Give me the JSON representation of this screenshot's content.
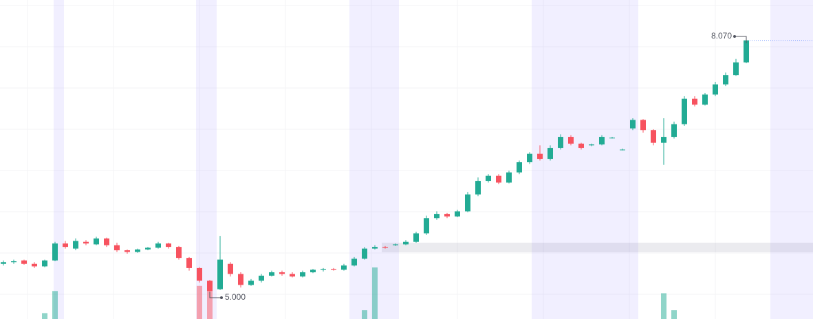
{
  "chart_data": {
    "type": "candlestick",
    "open": [
      5.4,
      5.42,
      5.44,
      5.4,
      5.37,
      5.44,
      5.64,
      5.58,
      5.66,
      5.63,
      5.7,
      5.62,
      5.56,
      5.54,
      5.57,
      5.59,
      5.64,
      5.6,
      5.47,
      5.35,
      5.2,
      5.1,
      5.4,
      5.28,
      5.15,
      5.2,
      5.26,
      5.3,
      5.28,
      5.25,
      5.3,
      5.33,
      5.34,
      5.33,
      5.38,
      5.46,
      5.58,
      5.6,
      5.62,
      5.63,
      5.66,
      5.76,
      5.94,
      5.99,
      5.96,
      6.02,
      6.22,
      6.38,
      6.44,
      6.36,
      6.48,
      6.6,
      6.7,
      6.64,
      6.77,
      6.9,
      6.82,
      6.8,
      6.81,
      6.89,
      6.75,
      7.0,
      7.1,
      6.98,
      6.83,
      6.9,
      7.05,
      7.35,
      7.28,
      7.4,
      7.52,
      7.63,
      7.78
    ],
    "high": [
      5.44,
      5.45,
      5.45,
      5.42,
      5.45,
      5.66,
      5.67,
      5.7,
      5.68,
      5.72,
      5.71,
      5.65,
      5.57,
      5.58,
      5.6,
      5.66,
      5.65,
      5.61,
      5.48,
      5.36,
      5.21,
      5.73,
      5.42,
      5.3,
      5.22,
      5.28,
      5.32,
      5.32,
      5.3,
      5.32,
      5.34,
      5.35,
      5.35,
      5.4,
      5.48,
      5.6,
      5.62,
      5.61,
      5.64,
      5.68,
      5.78,
      5.97,
      6.02,
      6.0,
      6.04,
      6.25,
      6.42,
      6.46,
      6.46,
      6.5,
      6.62,
      6.72,
      6.8,
      6.8,
      6.93,
      6.92,
      6.83,
      6.82,
      6.92,
      6.9,
      6.76,
      7.12,
      7.11,
      6.99,
      7.12,
      7.08,
      7.38,
      7.38,
      7.42,
      7.55,
      7.66,
      7.82,
      8.07
    ],
    "low": [
      5.38,
      5.4,
      5.39,
      5.35,
      5.36,
      5.43,
      5.58,
      5.56,
      5.62,
      5.62,
      5.6,
      5.54,
      5.52,
      5.53,
      5.56,
      5.58,
      5.58,
      5.45,
      5.32,
      5.18,
      5.0,
      5.09,
      5.25,
      5.12,
      5.14,
      5.18,
      5.25,
      5.26,
      5.24,
      5.24,
      5.29,
      5.31,
      5.32,
      5.32,
      5.37,
      5.45,
      5.57,
      5.58,
      5.61,
      5.62,
      5.65,
      5.74,
      5.92,
      5.94,
      5.95,
      6.01,
      6.2,
      6.36,
      6.34,
      6.35,
      6.46,
      6.58,
      6.62,
      6.62,
      6.75,
      6.8,
      6.75,
      6.79,
      6.8,
      6.88,
      6.74,
      6.98,
      6.95,
      6.8,
      6.57,
      6.88,
      7.03,
      7.26,
      7.27,
      7.38,
      7.5,
      7.62,
      7.77
    ],
    "close": [
      5.42,
      5.43,
      5.4,
      5.37,
      5.44,
      5.64,
      5.6,
      5.67,
      5.64,
      5.7,
      5.62,
      5.56,
      5.54,
      5.57,
      5.59,
      5.64,
      5.6,
      5.47,
      5.35,
      5.2,
      5.08,
      5.45,
      5.28,
      5.15,
      5.2,
      5.26,
      5.3,
      5.28,
      5.25,
      5.3,
      5.33,
      5.34,
      5.33,
      5.38,
      5.46,
      5.58,
      5.6,
      5.59,
      5.63,
      5.66,
      5.76,
      5.94,
      5.99,
      5.96,
      6.02,
      6.22,
      6.38,
      6.44,
      6.36,
      6.48,
      6.6,
      6.7,
      6.64,
      6.77,
      6.9,
      6.82,
      6.77,
      6.81,
      6.9,
      6.89,
      6.75,
      7.1,
      6.98,
      6.83,
      6.9,
      7.05,
      7.35,
      7.28,
      7.4,
      7.52,
      7.63,
      7.78,
      8.04
    ],
    "volume": [
      0,
      0,
      0,
      0,
      8,
      38,
      0,
      0,
      0,
      0,
      0,
      0,
      0,
      0,
      0,
      0,
      0,
      0,
      0,
      45,
      40,
      0,
      0,
      0,
      0,
      0,
      0,
      0,
      0,
      0,
      0,
      0,
      0,
      0,
      0,
      12,
      70,
      0,
      0,
      0,
      0,
      0,
      0,
      0,
      0,
      0,
      0,
      0,
      0,
      0,
      0,
      0,
      0,
      0,
      0,
      0,
      0,
      0,
      0,
      0,
      0,
      0,
      0,
      0,
      35,
      12,
      0,
      0,
      0,
      0,
      0,
      0,
      0
    ],
    "up_color": "#22ab94",
    "down_color": "#f7525f",
    "annotations": [
      {
        "value": 8.07,
        "label": "8.070"
      },
      {
        "value": 5.0,
        "label": "5.000"
      }
    ]
  }
}
